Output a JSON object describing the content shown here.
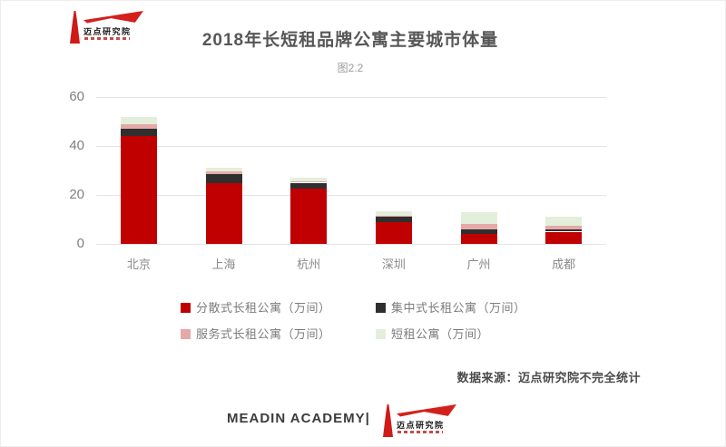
{
  "logo": {
    "name": "迈点研究院"
  },
  "title": "2018年长短租品牌公寓主要城市体量",
  "subtitle": "图2.2",
  "chart_data": {
    "type": "bar",
    "stacked": true,
    "title": "2018年长短租品牌公寓主要城市体量",
    "figure_label": "图2.2",
    "categories": [
      "北京",
      "上海",
      "杭州",
      "深圳",
      "广州",
      "成都"
    ],
    "series": [
      {
        "name": "分散式长租公寓（万间）",
        "color": "#c00000",
        "values": [
          44,
          25,
          22.5,
          9,
          4,
          5
        ]
      },
      {
        "name": "集中式长租公寓（万间）",
        "color": "#2f2f2f",
        "values": [
          3,
          3.5,
          2.5,
          2,
          2,
          1
        ]
      },
      {
        "name": "服务式长租公寓（万间）",
        "color": "#e5a9a8",
        "values": [
          2,
          1,
          0.5,
          0.5,
          2,
          1.5
        ]
      },
      {
        "name": "短租公寓（万间）",
        "color": "#e4efdb",
        "values": [
          3,
          1.8,
          1.5,
          2,
          5,
          3.5
        ]
      }
    ],
    "ylim": [
      0,
      60
    ],
    "yticks": [
      0,
      20,
      40,
      60
    ],
    "grid": true,
    "legend_position": "bottom"
  },
  "source": "数据来源：迈点研究院不完全统计",
  "footer": {
    "brand": "MEADIN ACADEMY|"
  }
}
